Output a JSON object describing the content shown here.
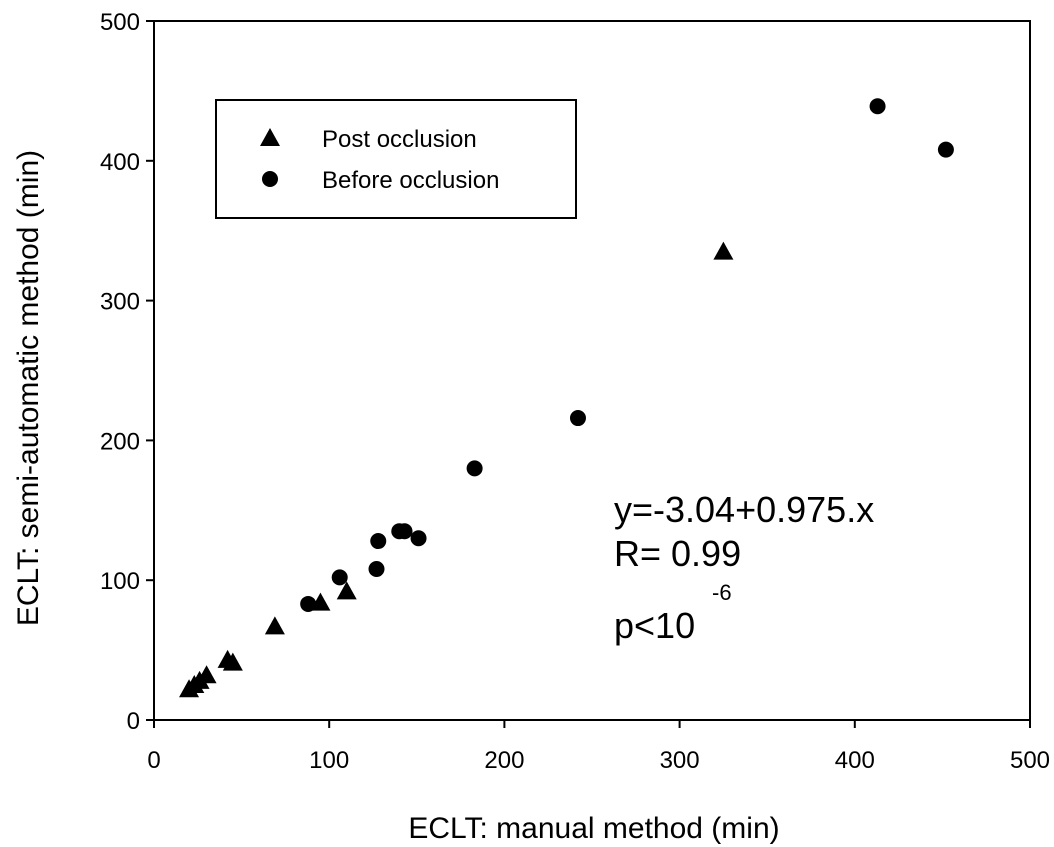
{
  "chart_data": {
    "type": "scatter",
    "xlabel": "ECLT: manual method (min)",
    "ylabel": "ECLT: semi-automatic method (min)",
    "xlim": [
      0,
      500
    ],
    "ylim": [
      0,
      500
    ],
    "xticks": [
      "0",
      "100",
      "200",
      "300",
      "400",
      "500"
    ],
    "yticks": [
      "0",
      "100",
      "200",
      "300",
      "400",
      "500"
    ],
    "grid": false,
    "legend_position": "top-left",
    "series": [
      {
        "name": "Post occlusion",
        "marker": "triangle",
        "points": [
          {
            "x": 20,
            "y": 22
          },
          {
            "x": 23,
            "y": 25
          },
          {
            "x": 26,
            "y": 28
          },
          {
            "x": 30,
            "y": 32
          },
          {
            "x": 42,
            "y": 43
          },
          {
            "x": 45,
            "y": 41
          },
          {
            "x": 69,
            "y": 67
          },
          {
            "x": 95,
            "y": 84
          },
          {
            "x": 110,
            "y": 92
          },
          {
            "x": 325,
            "y": 335
          }
        ]
      },
      {
        "name": "Before occlusion",
        "marker": "circle",
        "points": [
          {
            "x": 88,
            "y": 83
          },
          {
            "x": 106,
            "y": 102
          },
          {
            "x": 127,
            "y": 108
          },
          {
            "x": 128,
            "y": 128
          },
          {
            "x": 140,
            "y": 135
          },
          {
            "x": 143,
            "y": 135
          },
          {
            "x": 151,
            "y": 130
          },
          {
            "x": 183,
            "y": 180
          },
          {
            "x": 242,
            "y": 216
          },
          {
            "x": 413,
            "y": 439
          },
          {
            "x": 452,
            "y": 408
          }
        ]
      }
    ],
    "annotation": {
      "line1": "y=-3.04+0.975.x",
      "line2": "R= 0.99",
      "line3_base": "p<10",
      "line3_sup": "-6"
    }
  }
}
